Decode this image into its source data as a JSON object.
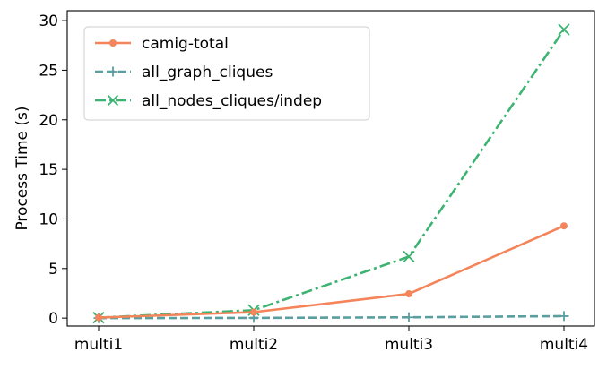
{
  "chart_data": {
    "type": "line",
    "ylabel": "Process Time (s)",
    "xlabel": "",
    "categories": [
      "multi1",
      "multi2",
      "multi3",
      "multi4"
    ],
    "ylim": [
      -0.8,
      31
    ],
    "yticks": [
      0,
      5,
      10,
      15,
      20,
      25,
      30
    ],
    "legend_position": "top-left",
    "grid": false,
    "series": [
      {
        "name": "camig-total",
        "values": [
          0.05,
          0.6,
          2.45,
          9.3
        ],
        "color": "#f4845a",
        "line_style": "solid",
        "marker": "circle"
      },
      {
        "name": "all_graph_cliques",
        "values": [
          0.0,
          0.02,
          0.08,
          0.2
        ],
        "color": "#5a9ea0",
        "line_style": "dashed",
        "marker": "plus"
      },
      {
        "name": "all_nodes_cliques/indep",
        "values": [
          0.05,
          0.8,
          6.2,
          29.1
        ],
        "color": "#3cb371",
        "line_style": "dashdot",
        "marker": "x"
      }
    ]
  }
}
